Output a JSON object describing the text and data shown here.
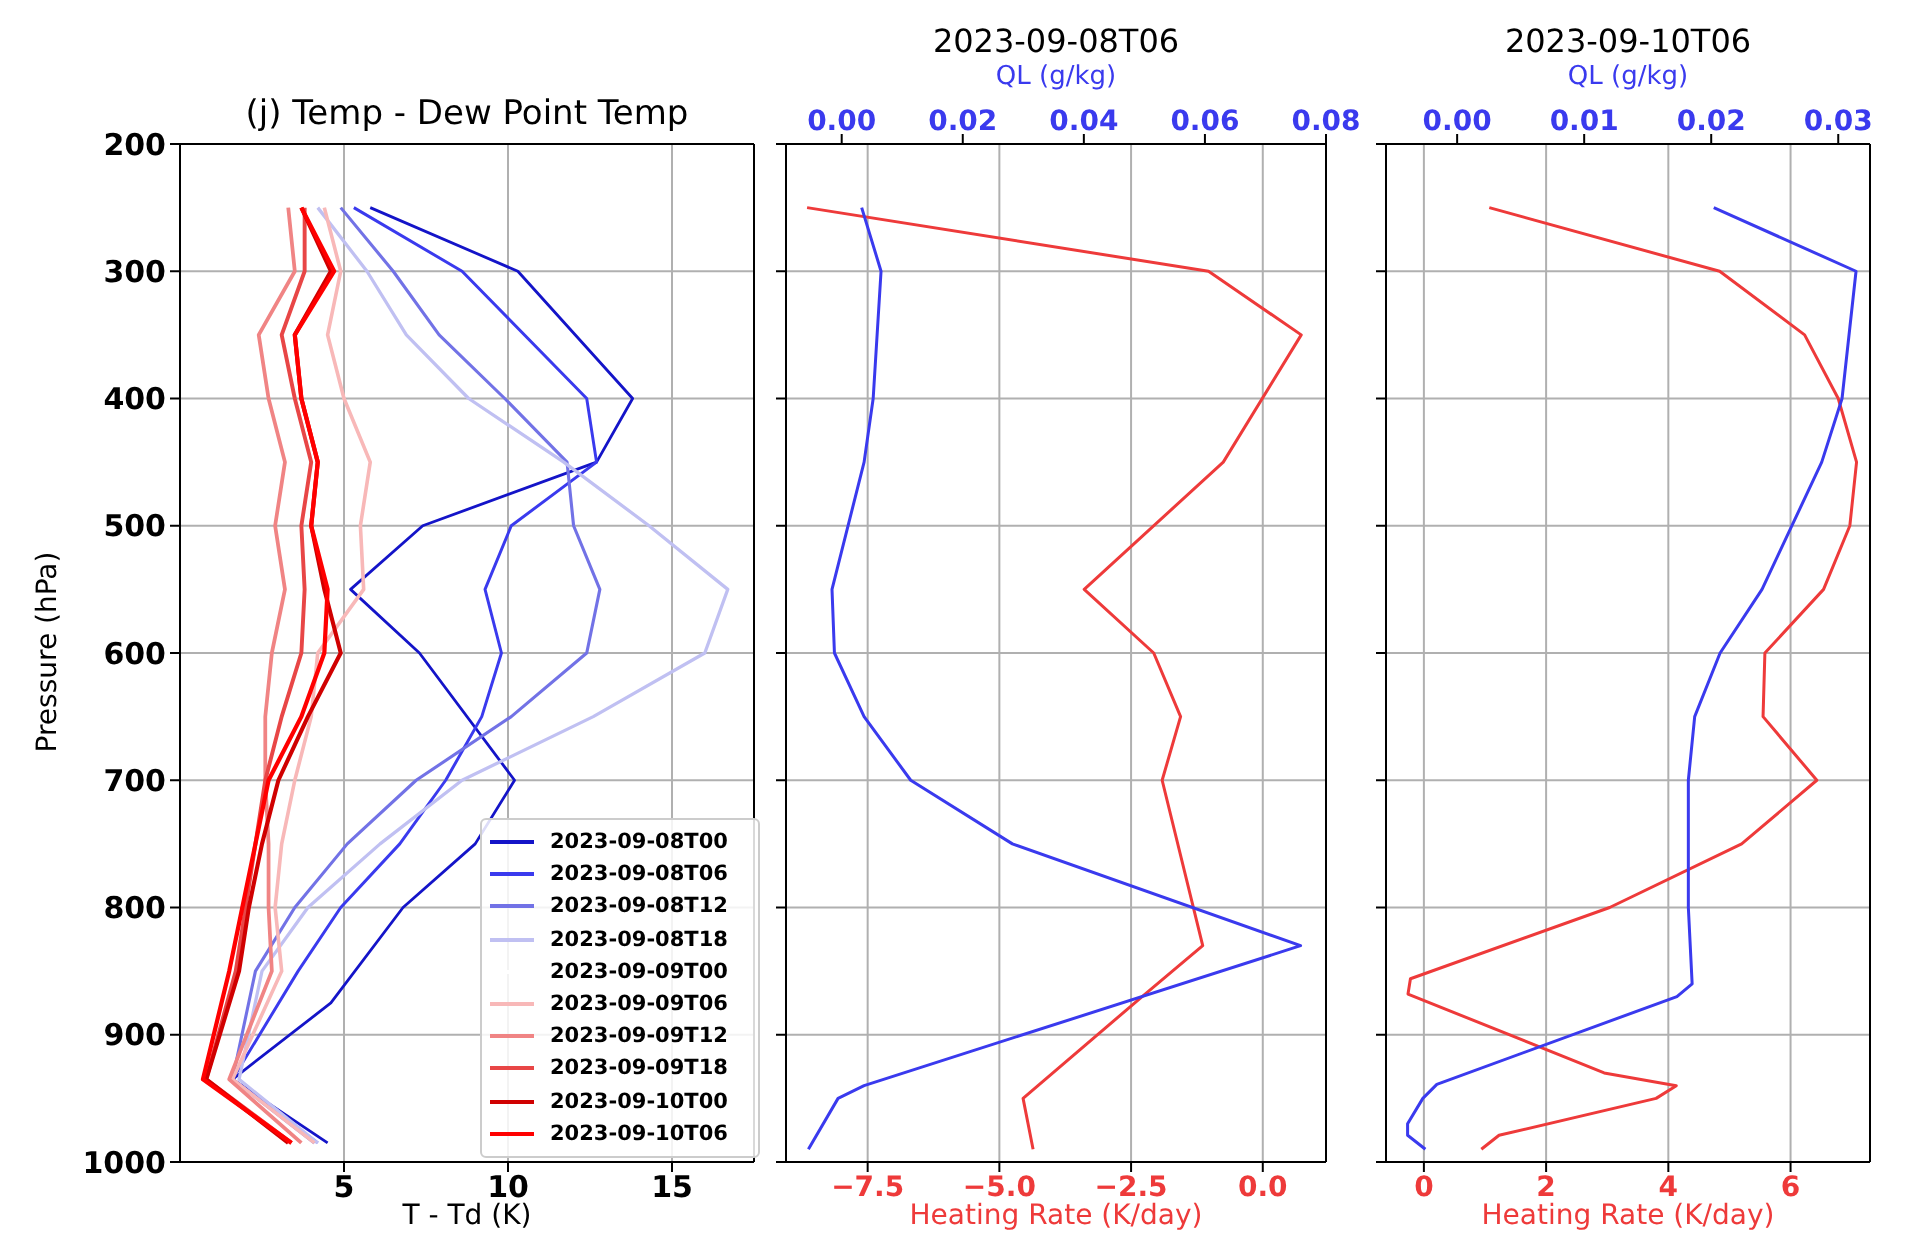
{
  "chart_data": [
    {
      "type": "line",
      "title": "(j) Temp - Dew Point Temp",
      "xlabel": "T - Td (K)",
      "ylabel": "Pressure (hPa)",
      "xlim": [
        0,
        17.5
      ],
      "xticks": [
        5,
        10,
        15
      ],
      "ylim": [
        1000,
        200
      ],
      "yticks": [
        200,
        300,
        400,
        500,
        600,
        700,
        800,
        900,
        1000
      ],
      "grid": true,
      "legend": "bottom right",
      "series": [
        {
          "name": "2023-09-08T00",
          "color": "#1414c8",
          "x": [
            5.8,
            10.3,
            13.8,
            12.7,
            7.4,
            5.2,
            7.3,
            10.2,
            9.0,
            6.8,
            4.6,
            1.6,
            4.5
          ],
          "values": [
            250,
            300,
            400,
            450,
            500,
            550,
            600,
            700,
            750,
            800,
            875,
            935,
            985
          ]
        },
        {
          "name": "2023-09-08T06",
          "color": "#3a3aee",
          "x": [
            5.3,
            8.6,
            12.4,
            12.7,
            10.1,
            9.3,
            9.8,
            9.2,
            8.1,
            6.7,
            4.9,
            3.6,
            1.6,
            4.2
          ],
          "values": [
            250,
            300,
            400,
            450,
            500,
            550,
            600,
            650,
            700,
            750,
            800,
            850,
            935,
            985
          ]
        },
        {
          "name": "2023-09-08T12",
          "color": "#7272e6",
          "x": [
            4.9,
            6.5,
            7.9,
            9.9,
            11.8,
            12.0,
            12.8,
            12.4,
            10.1,
            7.2,
            5.1,
            3.5,
            2.3,
            1.6,
            4.1
          ],
          "values": [
            250,
            300,
            350,
            400,
            450,
            500,
            550,
            600,
            650,
            700,
            750,
            800,
            850,
            935,
            985
          ]
        },
        {
          "name": "2023-09-08T18",
          "color": "#c0c0f2",
          "x": [
            4.2,
            5.7,
            6.9,
            8.8,
            11.7,
            14.3,
            16.7,
            16.0,
            12.6,
            8.6,
            6.1,
            3.9,
            2.5,
            1.8,
            4.2
          ],
          "values": [
            250,
            300,
            350,
            400,
            450,
            500,
            550,
            600,
            650,
            700,
            750,
            800,
            850,
            935,
            985
          ]
        },
        {
          "name": "2023-09-09T00",
          "color": "#ffffff",
          "x": [
            null
          ],
          "values": [
            null
          ]
        },
        {
          "name": "2023-09-09T06",
          "color": "#f8b8b8",
          "x": [
            4.4,
            4.9,
            4.5,
            5.0,
            5.8,
            5.5,
            5.6,
            4.2,
            4.0,
            3.5,
            3.1,
            2.9,
            3.1,
            1.6,
            4.1
          ],
          "values": [
            250,
            300,
            350,
            400,
            450,
            500,
            550,
            600,
            650,
            700,
            750,
            800,
            850,
            935,
            985
          ]
        },
        {
          "name": "2023-09-09T12",
          "color": "#f08484",
          "x": [
            3.3,
            3.5,
            2.4,
            2.7,
            3.2,
            2.9,
            3.2,
            2.8,
            2.6,
            2.6,
            2.7,
            2.7,
            2.8,
            1.5,
            3.7
          ],
          "values": [
            250,
            300,
            350,
            400,
            450,
            500,
            550,
            600,
            650,
            700,
            750,
            800,
            850,
            935,
            985
          ]
        },
        {
          "name": "2023-09-09T18",
          "color": "#e84646",
          "x": [
            3.8,
            3.8,
            3.1,
            3.5,
            4.0,
            3.7,
            3.8,
            3.7,
            3.1,
            2.6,
            2.3,
            2.0,
            1.7,
            0.8,
            3.4
          ],
          "values": [
            250,
            300,
            350,
            400,
            450,
            500,
            550,
            600,
            650,
            700,
            750,
            800,
            850,
            935,
            985
          ]
        },
        {
          "name": "2023-09-10T00",
          "color": "#d00000",
          "x": [
            3.7,
            4.6,
            3.5,
            3.7,
            4.2,
            4.0,
            4.4,
            4.9,
            3.9,
            3.0,
            2.5,
            2.1,
            1.8,
            0.8,
            3.3
          ],
          "values": [
            250,
            300,
            350,
            400,
            450,
            500,
            550,
            600,
            650,
            700,
            750,
            800,
            850,
            935,
            985
          ]
        },
        {
          "name": "2023-09-10T06",
          "color": "#ff0000",
          "x": [
            3.7,
            4.7,
            3.5,
            3.7,
            4.2,
            4.0,
            4.5,
            4.4,
            3.7,
            2.7,
            2.3,
            1.9,
            1.5,
            0.7,
            3.4
          ],
          "values": [
            250,
            300,
            350,
            400,
            450,
            500,
            550,
            600,
            650,
            700,
            750,
            800,
            850,
            935,
            985
          ]
        }
      ]
    },
    {
      "type": "line",
      "title": "2023-09-08T06",
      "xlabel": "Heating Rate (K/day)",
      "x2label": "QL (g/kg)",
      "xlim": [
        -9.05,
        1.2
      ],
      "xticks": [
        {
          "value": -7.5,
          "label": "−7.5"
        },
        {
          "value": -5,
          "label": "−5.0"
        },
        {
          "value": -2.5,
          "label": "−2.5"
        },
        {
          "value": 0,
          "label": "0.0"
        }
      ],
      "x2lim": [
        -0.0092,
        0.08
      ],
      "x2ticks": [
        {
          "value": 0,
          "label": "0.00"
        },
        {
          "value": 0.02,
          "label": "0.02"
        },
        {
          "value": 0.04,
          "label": "0.04"
        },
        {
          "value": 0.06,
          "label": "0.06"
        },
        {
          "value": 0.08,
          "label": "0.08"
        }
      ],
      "ylim": [
        1000,
        200
      ],
      "yticks": [
        {
          "value": 200,
          "label": null
        },
        {
          "value": 300,
          "label": null
        },
        {
          "value": 400,
          "label": null
        },
        {
          "value": 500,
          "label": null
        },
        {
          "value": 600,
          "label": null
        },
        {
          "value": 700,
          "label": null
        },
        {
          "value": 800,
          "label": null
        },
        {
          "value": 900,
          "label": null
        },
        {
          "value": 1000,
          "label": null
        }
      ],
      "tick_labels": "x",
      "grid": true,
      "series": [
        {
          "color": "#ee3a3a",
          "x": [
            -8.65,
            -1.03,
            0.73,
            -0.75,
            -3.39,
            -2.07,
            -1.56,
            -1.91,
            -1.14,
            -2.29,
            -4.55,
            -4.36
          ],
          "values": [
            250,
            300,
            350,
            450,
            550,
            600,
            650,
            700,
            830,
            870,
            950,
            990
          ]
        },
        {
          "color": "#3a3aee",
          "axis": "x2",
          "x": [
            0.0033,
            0.0065,
            0.0052,
            0.0037,
            -0.0016,
            -0.0012,
            0.0037,
            0.0114,
            0.0282,
            0.0758,
            0.0037,
            -0.0006,
            -0.0055
          ],
          "values": [
            250,
            300,
            400,
            450,
            550,
            600,
            650,
            700,
            750,
            830,
            940,
            950,
            990
          ]
        }
      ]
    },
    {
      "type": "line",
      "title": "2023-09-10T06",
      "xlabel": "Heating Rate (K/day)",
      "x2label": "QL (g/kg)",
      "xlim": [
        -0.62,
        7.3
      ],
      "xticks": [
        0,
        2,
        4,
        6
      ],
      "x2lim": [
        -0.0056,
        0.0325
      ],
      "x2ticks": [
        {
          "value": 0,
          "label": "0.00"
        },
        {
          "value": 0.01,
          "label": "0.01"
        },
        {
          "value": 0.02,
          "label": "0.02"
        },
        {
          "value": 0.03,
          "label": "0.03"
        }
      ],
      "ylim": [
        1000,
        200
      ],
      "yticks": [
        {
          "value": 200,
          "label": null
        },
        {
          "value": 300,
          "label": null
        },
        {
          "value": 400,
          "label": null
        },
        {
          "value": 500,
          "label": null
        },
        {
          "value": 600,
          "label": null
        },
        {
          "value": 700,
          "label": null
        },
        {
          "value": 800,
          "label": null
        },
        {
          "value": 900,
          "label": null
        },
        {
          "value": 1000,
          "label": null
        }
      ],
      "tick_labels": "x",
      "grid": true,
      "series": [
        {
          "color": "#ee3a3a",
          "x": [
            1.07,
            4.84,
            6.23,
            6.78,
            7.08,
            6.97,
            6.54,
            5.58,
            5.55,
            6.43,
            5.2,
            3.04,
            -0.22,
            -0.26,
            2.95,
            4.13,
            3.8,
            1.23,
            0.94
          ],
          "values": [
            250,
            300,
            350,
            400,
            450,
            500,
            550,
            600,
            650,
            700,
            750,
            800,
            856,
            868,
            930,
            940,
            950,
            979,
            990
          ]
        },
        {
          "color": "#3a3aee",
          "axis": "x2",
          "x": [
            0.0202,
            0.0314,
            0.0303,
            0.0287,
            0.024,
            0.0207,
            0.0187,
            0.0182,
            0.0182,
            0.0185,
            0.0173,
            -0.0016,
            -0.0027,
            -0.0039,
            -0.0039,
            -0.0025
          ],
          "values": [
            250,
            300,
            400,
            450,
            550,
            600,
            650,
            700,
            800,
            860,
            870,
            939,
            950,
            970,
            979,
            990
          ]
        }
      ]
    }
  ]
}
